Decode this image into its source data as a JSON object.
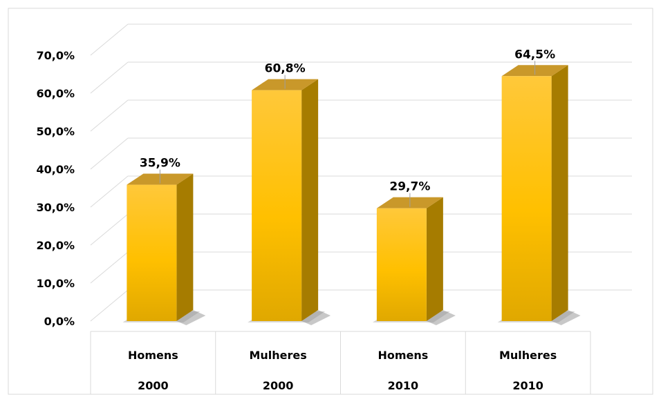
{
  "chart_data": {
    "type": "bar",
    "title": "",
    "xlabel": "",
    "ylabel": "",
    "categories": [
      [
        "Homens",
        "2000"
      ],
      [
        "Mulheres",
        "2000"
      ],
      [
        "Homens",
        "2010"
      ],
      [
        "Mulheres",
        "2010"
      ]
    ],
    "values": [
      35.9,
      60.8,
      29.7,
      64.5
    ],
    "data_labels": [
      "35,9%",
      "60,8%",
      "29,7%",
      "64,5%"
    ],
    "ylim": [
      0,
      70
    ],
    "y_ticks": [
      0,
      10,
      20,
      30,
      40,
      50,
      60,
      70
    ],
    "y_tick_labels": [
      "0,0%",
      "10,0%",
      "20,0%",
      "30,0%",
      "40,0%",
      "50,0%",
      "60,0%",
      "70,0%"
    ],
    "grid": true,
    "legend": "none",
    "style": "3d-column",
    "colors": {
      "bar_top": "#ffc83a",
      "bar_mid": "#ffc000",
      "bar_bottom": "#e0a800",
      "bar_side": "#a67c00",
      "bar_cap": "#c9982a",
      "grid": "#d9d9d9",
      "frame": "#d9d9d9"
    }
  }
}
